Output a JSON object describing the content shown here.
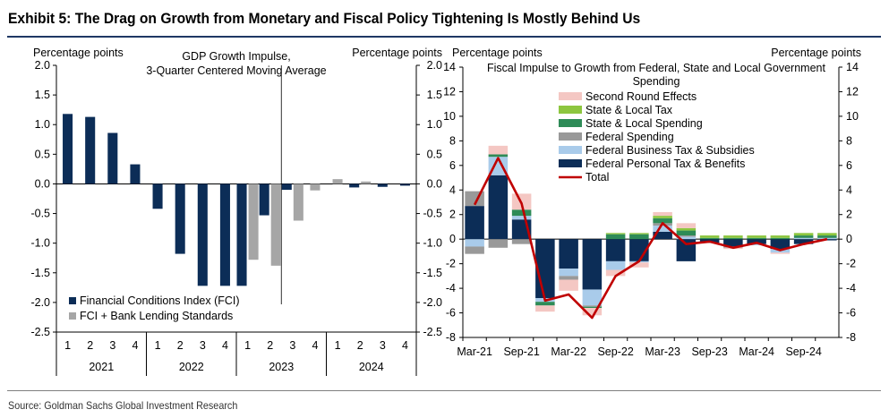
{
  "header": {
    "title": "Exhibit 5: The Drag on Growth from Monetary and Fiscal Policy Tightening Is Mostly Behind Us"
  },
  "footer": {
    "source": "Source: Goldman Sachs Global Investment Research"
  },
  "colors": {
    "navy": "#0c2d57",
    "gray": "#a6a6a6",
    "second_round": "#f4c7c3",
    "sl_tax": "#8dc63f",
    "sl_spending": "#2e8b57",
    "federal_spending": "#999999",
    "federal_business": "#a9cbea",
    "federal_personal": "#0c2d57",
    "total": "#c00000",
    "rule": "#1f3864"
  },
  "chart_data": [
    {
      "type": "bar",
      "title": "GDP Growth Impulse,\n3-Quarter Centered Moving Average",
      "ylabel_left": "Percentage points",
      "ylabel_right": "Percentage points",
      "ylim": [
        -2.5,
        2.0
      ],
      "yticks": [
        "2.0",
        "1.5",
        "1.0",
        "0.5",
        "0.0",
        "-0.5",
        "-1.0",
        "-1.5",
        "-2.0",
        "-2.5"
      ],
      "quarters": [
        "1",
        "2",
        "3",
        "4",
        "1",
        "2",
        "3",
        "4",
        "1",
        "2",
        "3",
        "4",
        "1",
        "2",
        "3",
        "4"
      ],
      "years": [
        "2021",
        "2022",
        "2023",
        "2024"
      ],
      "legend_placement": "bottom-left",
      "series": [
        {
          "name": "Financial Conditions Index (FCI)",
          "color": "#0c2d57",
          "values": [
            1.18,
            1.13,
            0.86,
            0.33,
            -0.42,
            -1.18,
            -1.72,
            -1.72,
            -1.72,
            -0.53,
            -0.1,
            null,
            null,
            -0.06,
            -0.05,
            -0.03
          ]
        },
        {
          "name": "FCI + Bank Lending Standards",
          "color": "#a6a6a6",
          "values": [
            null,
            null,
            null,
            null,
            null,
            null,
            null,
            null,
            -1.28,
            -1.38,
            -0.62,
            -0.11,
            0.08,
            0.04,
            null,
            null
          ]
        }
      ]
    },
    {
      "type": "bar",
      "title": "Fiscal Impulse to Growth from Federal, State and Local Government\nSpending",
      "ylabel_left": "Percentage points",
      "ylabel_right": "Percentage points",
      "ylim": [
        -8,
        14
      ],
      "yticks": [
        "14",
        "12",
        "10",
        "8",
        "6",
        "4",
        "2",
        "0",
        "-2",
        "-4",
        "-6",
        "-8"
      ],
      "x": [
        "Mar-21",
        "Jun-21",
        "Sep-21",
        "Dec-21",
        "Mar-22",
        "Jun-22",
        "Sep-22",
        "Dec-22",
        "Mar-23",
        "Jun-23",
        "Sep-23",
        "Dec-23",
        "Mar-24",
        "Jun-24",
        "Sep-24",
        "Dec-24"
      ],
      "x_tick_labels": [
        "Mar-21",
        "Sep-21",
        "Mar-22",
        "Sep-22",
        "Mar-23",
        "Sep-23",
        "Mar-24",
        "Sep-24"
      ],
      "legend_placement": "top-center",
      "series": [
        {
          "name": "Second Round Effects",
          "color": "#f4c7c3",
          "values": [
            [
              0.0,
              0.0
            ],
            [
              0.7,
              0.0
            ],
            [
              1.3,
              0.0
            ],
            [
              0.0,
              -0.5
            ],
            [
              0.0,
              -0.9
            ],
            [
              0.0,
              -0.6
            ],
            [
              0.0,
              -0.5
            ],
            [
              0.0,
              -0.4
            ],
            [
              0.3,
              0.0
            ],
            [
              0.4,
              0.0
            ],
            [
              0.0,
              0.0
            ],
            [
              0.0,
              -0.1
            ],
            [
              0.0,
              0.0
            ],
            [
              0.0,
              -0.1
            ],
            [
              0.0,
              0.0
            ],
            [
              0.0,
              0.0
            ]
          ]
        },
        {
          "name": "State & Local Tax",
          "color": "#8dc63f",
          "values": [
            [
              0.0,
              0.0
            ],
            [
              0.0,
              0.0
            ],
            [
              0.0,
              0.0
            ],
            [
              0.0,
              0.0
            ],
            [
              0.0,
              0.0
            ],
            [
              0.0,
              0.0
            ],
            [
              0.1,
              0.0
            ],
            [
              0.1,
              0.0
            ],
            [
              0.2,
              0.0
            ],
            [
              0.2,
              0.0
            ],
            [
              0.2,
              0.0
            ],
            [
              0.2,
              0.0
            ],
            [
              0.2,
              0.0
            ],
            [
              0.2,
              0.0
            ],
            [
              0.2,
              0.0
            ],
            [
              0.2,
              0.0
            ]
          ]
        },
        {
          "name": "State & Local Spending",
          "color": "#2e8b57",
          "values": [
            [
              0.0,
              0.0
            ],
            [
              0.2,
              0.0
            ],
            [
              0.5,
              0.0
            ],
            [
              0.0,
              -0.3
            ],
            [
              0.0,
              0.0
            ],
            [
              0.0,
              -0.1
            ],
            [
              0.4,
              0.0
            ],
            [
              0.4,
              0.0
            ],
            [
              0.4,
              0.0
            ],
            [
              0.4,
              0.0
            ],
            [
              0.1,
              0.0
            ],
            [
              0.1,
              0.0
            ],
            [
              0.1,
              0.0
            ],
            [
              0.1,
              0.0
            ],
            [
              0.2,
              0.0
            ],
            [
              0.2,
              0.0
            ]
          ]
        },
        {
          "name": "Federal Spending",
          "color": "#999999",
          "values": [
            [
              1.2,
              -0.6
            ],
            [
              0.0,
              -0.7
            ],
            [
              0.0,
              -0.4
            ],
            [
              0.0,
              0.0
            ],
            [
              0.0,
              -0.3
            ],
            [
              0.0,
              -0.1
            ],
            [
              0.0,
              0.0
            ],
            [
              0.0,
              0.0
            ],
            [
              0.2,
              0.0
            ],
            [
              0.1,
              0.0
            ],
            [
              0.0,
              0.0
            ],
            [
              0.0,
              -0.1
            ],
            [
              0.0,
              0.0
            ],
            [
              0.0,
              0.0
            ],
            [
              0.0,
              0.0
            ],
            [
              0.0,
              0.0
            ]
          ]
        },
        {
          "name": "Federal Business Tax & Subsidies",
          "color": "#a9cbea",
          "values": [
            [
              0.0,
              -0.6
            ],
            [
              1.5,
              0.0
            ],
            [
              0.3,
              0.0
            ],
            [
              0.0,
              -0.3
            ],
            [
              0.0,
              -0.6
            ],
            [
              0.0,
              -1.3
            ],
            [
              0.0,
              -0.7
            ],
            [
              0.0,
              -0.1
            ],
            [
              0.5,
              0.0
            ],
            [
              0.2,
              0.0
            ],
            [
              0.0,
              0.0
            ],
            [
              0.0,
              0.0
            ],
            [
              0.0,
              -0.1
            ],
            [
              0.0,
              -0.3
            ],
            [
              0.1,
              0.0
            ],
            [
              0.1,
              0.0
            ]
          ]
        },
        {
          "name": "Federal Personal Tax & Benefits",
          "color": "#0c2d57",
          "values": [
            [
              2.7,
              0.0
            ],
            [
              5.2,
              0.0
            ],
            [
              1.6,
              0.0
            ],
            [
              0.0,
              -4.8
            ],
            [
              0.0,
              -2.4
            ],
            [
              0.0,
              -4.1
            ],
            [
              0.0,
              -1.8
            ],
            [
              0.0,
              -1.8
            ],
            [
              0.6,
              0.0
            ],
            [
              0.0,
              -1.8
            ],
            [
              0.0,
              -0.3
            ],
            [
              0.0,
              -0.6
            ],
            [
              0.0,
              -0.4
            ],
            [
              0.0,
              -0.8
            ],
            [
              0.0,
              -0.4
            ],
            [
              0.0,
              -0.1
            ]
          ]
        },
        {
          "name": "Total",
          "color": "#c00000",
          "line": true,
          "values": [
            2.8,
            6.6,
            2.9,
            -5.0,
            -4.5,
            -6.4,
            -3.0,
            -1.8,
            1.3,
            -0.4,
            -0.2,
            -0.7,
            -0.3,
            -0.9,
            -0.4,
            0.0
          ]
        }
      ]
    }
  ]
}
